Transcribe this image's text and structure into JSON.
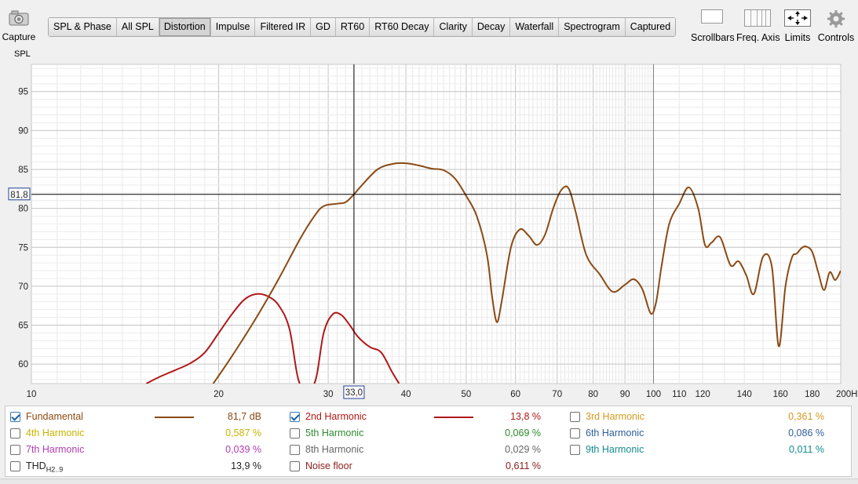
{
  "toolbar": {
    "capture_label": "Capture",
    "tabs": [
      {
        "label": "SPL & Phase"
      },
      {
        "label": "All SPL"
      },
      {
        "label": "Distortion",
        "active": true
      },
      {
        "label": "Impulse"
      },
      {
        "label": "Filtered IR"
      },
      {
        "label": "GD"
      },
      {
        "label": "RT60"
      },
      {
        "label": "RT60 Decay"
      },
      {
        "label": "Clarity"
      },
      {
        "label": "Decay"
      },
      {
        "label": "Waterfall"
      },
      {
        "label": "Spectrogram"
      },
      {
        "label": "Captured"
      }
    ],
    "scrollbars_label": "Scrollbars",
    "freq_axis_label": "Freq. Axis",
    "limits_label": "Limits",
    "controls_label": "Controls"
  },
  "chart_data": {
    "type": "line",
    "ylabel": "SPL",
    "xunit": "Hz",
    "xscale": "log",
    "xlim": [
      10,
      200
    ],
    "ylim": [
      57.5,
      98.5
    ],
    "yticks": [
      95,
      90,
      85,
      80,
      75,
      70,
      65,
      60
    ],
    "xticks": [
      {
        "v": 10,
        "label": "10"
      },
      {
        "v": 20,
        "label": "20"
      },
      {
        "v": 30,
        "label": "30"
      },
      {
        "v": 40,
        "label": "40"
      },
      {
        "v": 50,
        "label": "50"
      },
      {
        "v": 60,
        "label": "60"
      },
      {
        "v": 70,
        "label": "70"
      },
      {
        "v": 80,
        "label": "80"
      },
      {
        "v": 90,
        "label": "90"
      },
      {
        "v": 100,
        "label": "100"
      },
      {
        "v": 110,
        "label": "110"
      },
      {
        "v": 120,
        "label": "120"
      },
      {
        "v": 140,
        "label": "140"
      },
      {
        "v": 160,
        "label": "160"
      },
      {
        "v": 180,
        "label": "180"
      },
      {
        "v": 200,
        "label": "200Hz"
      }
    ],
    "cursor": {
      "x": 33.0,
      "x_label": "33,0",
      "y": 81.8,
      "y_label": "81,8"
    },
    "series": [
      {
        "name": "Fundamental",
        "color": "#8b4a14",
        "x": [
          19.6,
          21,
          23,
          25,
          27,
          28.5,
          29.5,
          31,
          32,
          33,
          34,
          36,
          38,
          40,
          42,
          44,
          46,
          48,
          50,
          52,
          54,
          55,
          56,
          57,
          59,
          61,
          63,
          65,
          67,
          69,
          71,
          73,
          75,
          78,
          82,
          86,
          90,
          93,
          96,
          99,
          101,
          103,
          106,
          110,
          114,
          118,
          121,
          124,
          128,
          133,
          137,
          141,
          145,
          150,
          155,
          159,
          163,
          167,
          170,
          173,
          176,
          180,
          184,
          188,
          192,
          196,
          200
        ],
        "y": [
          57.5,
          61,
          66,
          71,
          76,
          79,
          80.3,
          80.6,
          80.8,
          81.8,
          83,
          85,
          85.7,
          85.8,
          85.5,
          85.1,
          84.9,
          83.8,
          81.6,
          79,
          74,
          68.8,
          65.4,
          68,
          75,
          77.3,
          76.5,
          75.3,
          76.7,
          80,
          82.3,
          82.6,
          79.5,
          74,
          71.5,
          69.3,
          70.2,
          70.9,
          69.6,
          66.5,
          68,
          72.5,
          78,
          80.6,
          82.7,
          80,
          75.3,
          75.6,
          76.3,
          72.7,
          73.2,
          71.4,
          69,
          73.8,
          72.5,
          62.3,
          70,
          73.7,
          74.2,
          74.9,
          75.1,
          74.4,
          71.8,
          69.5,
          71.8,
          70.8,
          72
        ]
      },
      {
        "name": "2nd Harmonic",
        "color": "#b01818",
        "x": [
          15.3,
          16,
          17,
          18,
          19,
          20,
          21,
          22,
          23,
          24,
          25,
          26,
          27,
          28.5,
          29.5,
          30.5,
          31.5,
          32.5,
          33.5,
          35,
          36.5,
          38,
          39
        ],
        "y": [
          57.5,
          58.3,
          59.2,
          60.1,
          61.5,
          64,
          66.4,
          68.3,
          69,
          68.7,
          67.5,
          64.5,
          57.5,
          57.5,
          64,
          66.4,
          66.3,
          65,
          63.5,
          62.2,
          61.5,
          59,
          57.5
        ]
      }
    ]
  },
  "legend": {
    "items": [
      {
        "label": "Fundamental",
        "value": "81,7 dB",
        "checked": true,
        "color": "#8b4a14",
        "label_color": "#8b4a14",
        "line": true
      },
      {
        "label": "2nd Harmonic",
        "value": "13,8 %",
        "checked": true,
        "color": "#b01818",
        "label_color": "#b01818",
        "line": true
      },
      {
        "label": "3rd Harmonic",
        "value": "0,361 %",
        "checked": false,
        "label_color": "#d49a20"
      },
      {
        "label": "4th Harmonic",
        "value": "0,587 %",
        "checked": false,
        "label_color": "#c8b400"
      },
      {
        "label": "5th Harmonic",
        "value": "0,069 %",
        "checked": false,
        "label_color": "#2e8b2e"
      },
      {
        "label": "6th Harmonic",
        "value": "0,086 %",
        "checked": false,
        "label_color": "#2f5f9a"
      },
      {
        "label": "7th Harmonic",
        "value": "0,039 %",
        "checked": false,
        "label_color": "#b23cb2"
      },
      {
        "label": "8th Harmonic",
        "value": "0,029 %",
        "checked": false,
        "label_color": "#666666"
      },
      {
        "label": "9th Harmonic",
        "value": "0,011 %",
        "checked": false,
        "label_color": "#148c8c"
      },
      {
        "label": "THD",
        "label_sub": "H2..9",
        "value": "13,9 %",
        "checked": false,
        "label_color": "#222222"
      },
      {
        "label": "Noise floor",
        "value": "0,611 %",
        "checked": false,
        "label_color": "#8b2020"
      }
    ]
  }
}
